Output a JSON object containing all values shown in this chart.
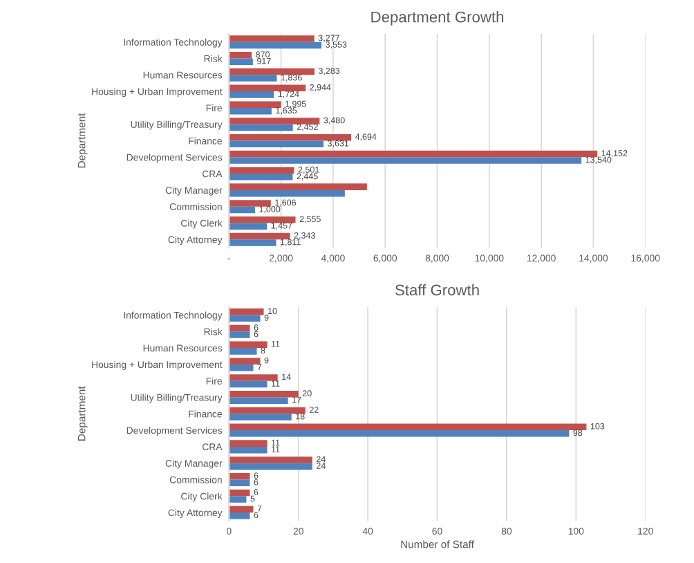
{
  "chart_data": [
    {
      "type": "bar",
      "orientation": "horizontal",
      "title": "Department Growth",
      "ylabel": "Department",
      "categories": [
        "Information Technology",
        "Risk",
        "Human Resources",
        "Housing + Urban Improvement",
        "Fire",
        "Utility Billing/Treasury",
        "Finance",
        "Development Services",
        "CRA",
        "City Manager",
        "Commission",
        "City Clerk",
        "City Attorney"
      ],
      "series": [
        {
          "color": "#c0504d",
          "values": [
            3277,
            870,
            3283,
            2944,
            1995,
            3480,
            4694,
            14152,
            2501,
            5300,
            1606,
            2555,
            2343
          ],
          "value_labels": [
            "3,277",
            "870",
            "3,283",
            "2,944",
            "1,995",
            "3,480",
            "4,694",
            "14,152",
            "2,501",
            null,
            "1,606",
            "2,555",
            "2,343"
          ]
        },
        {
          "color": "#4f81bd",
          "values": [
            3553,
            917,
            1836,
            1724,
            1635,
            2452,
            3631,
            13540,
            2445,
            4450,
            1000,
            1457,
            1811
          ],
          "value_labels": [
            "3,553",
            "917",
            "1,836",
            "1,724",
            "1,635",
            "2,452",
            "3,631",
            "13,540",
            "2,445",
            null,
            "1,000",
            "1,457",
            "1,811"
          ]
        }
      ],
      "xlim": [
        0,
        16000
      ],
      "xticks": [
        {
          "value": 0,
          "label": "-"
        },
        {
          "value": 2000,
          "label": "2,000"
        },
        {
          "value": 4000,
          "label": "4,000"
        },
        {
          "value": 6000,
          "label": "6,000"
        },
        {
          "value": 8000,
          "label": "8,000"
        },
        {
          "value": 10000,
          "label": "10,000"
        },
        {
          "value": 12000,
          "label": "12,000"
        },
        {
          "value": 14000,
          "label": "14,000"
        },
        {
          "value": 16000,
          "label": "16,000"
        }
      ],
      "grid": "x"
    },
    {
      "type": "bar",
      "orientation": "horizontal",
      "title": "Staff Growth",
      "xlabel": "Number of Staff",
      "ylabel": "Department",
      "categories": [
        "Information Technology",
        "Risk",
        "Human Resources",
        "Housing + Urban Improvement",
        "Fire",
        "Utility Billing/Treasury",
        "Finance",
        "Development Services",
        "CRA",
        "City Manager",
        "Commission",
        "City Clerk",
        "City Attorney"
      ],
      "series": [
        {
          "color": "#c0504d",
          "values": [
            10,
            6,
            11,
            9,
            14,
            20,
            22,
            103,
            11,
            24,
            6,
            6,
            7
          ]
        },
        {
          "color": "#4f81bd",
          "values": [
            9,
            6,
            8,
            7,
            11,
            17,
            18,
            98,
            11,
            24,
            6,
            5,
            6
          ]
        }
      ],
      "xlim": [
        0,
        120
      ],
      "xticks": [
        0,
        20,
        40,
        60,
        80,
        100,
        120
      ],
      "grid": "x",
      "data_labels": true
    }
  ]
}
